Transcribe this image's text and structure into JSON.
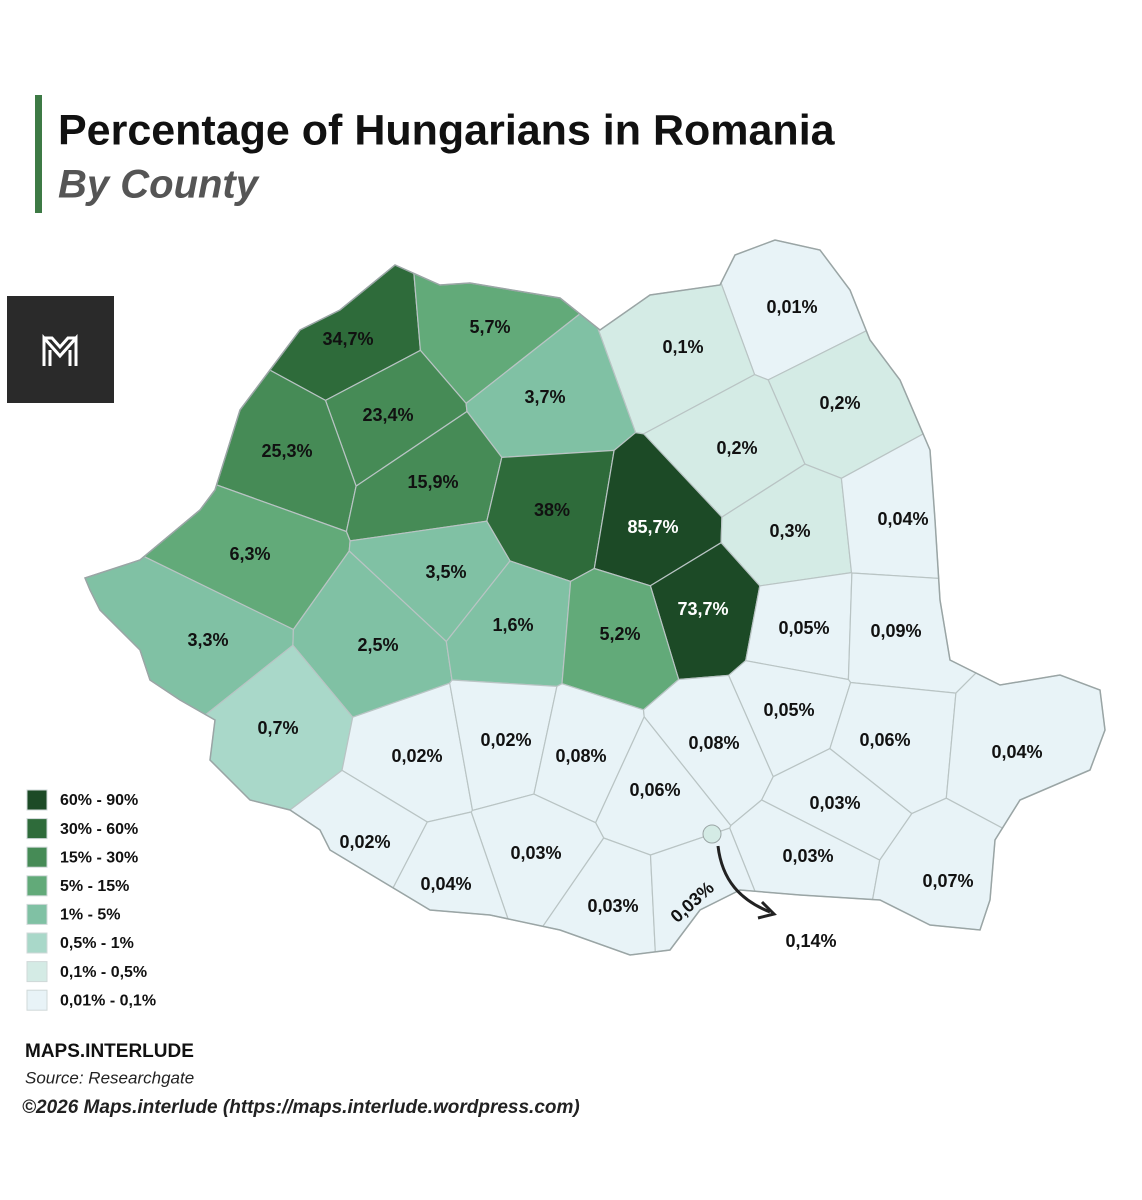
{
  "header": {
    "title": "Percentage of Hungarians in Romania",
    "subtitle": "By County"
  },
  "legend": [
    {
      "label": "60% - 90%",
      "color": "#1c4a26"
    },
    {
      "label": "30% - 60%",
      "color": "#2e6b3a"
    },
    {
      "label": "15% - 30%",
      "color": "#468b56"
    },
    {
      "label": "5% - 15%",
      "color": "#62aa79"
    },
    {
      "label": "1% - 5%",
      "color": "#80c1a4"
    },
    {
      "label": "0,5% - 1%",
      "color": "#a9d8c9"
    },
    {
      "label": "0,1% - 0,5%",
      "color": "#d4ebe5"
    },
    {
      "label": "0,01% - 0,1%",
      "color": "#e8f3f7"
    }
  ],
  "counties": [
    {
      "label": "34,7%",
      "color": "#2e6b3a"
    },
    {
      "label": "5,7%",
      "color": "#62aa79"
    },
    {
      "label": "0,01%",
      "color": "#e8f3f7"
    },
    {
      "label": "0,1%",
      "color": "#d4ebe5"
    },
    {
      "label": "23,4%",
      "color": "#468b56"
    },
    {
      "label": "3,7%",
      "color": "#80c1a4"
    },
    {
      "label": "0,2%",
      "color": "#d4ebe5"
    },
    {
      "label": "25,3%",
      "color": "#468b56"
    },
    {
      "label": "15,9%",
      "color": "#468b56"
    },
    {
      "label": "0,2%",
      "color": "#d4ebe5"
    },
    {
      "label": "38%",
      "color": "#2e6b3a"
    },
    {
      "label": "85,7%",
      "color": "#1c4a26"
    },
    {
      "label": "0,3%",
      "color": "#d4ebe5"
    },
    {
      "label": "0,04%",
      "color": "#e8f3f7"
    },
    {
      "label": "6,3%",
      "color": "#62aa79"
    },
    {
      "label": "3,5%",
      "color": "#80c1a4"
    },
    {
      "label": "73,7%",
      "color": "#1c4a26"
    },
    {
      "label": "0,05%",
      "color": "#e8f3f7"
    },
    {
      "label": "0,09%",
      "color": "#e8f3f7"
    },
    {
      "label": "3,3%",
      "color": "#80c1a4"
    },
    {
      "label": "2,5%",
      "color": "#80c1a4"
    },
    {
      "label": "1,6%",
      "color": "#80c1a4"
    },
    {
      "label": "5,2%",
      "color": "#62aa79"
    },
    {
      "label": "0,7%",
      "color": "#a9d8c9"
    },
    {
      "label": "0,05%",
      "color": "#e8f3f7"
    },
    {
      "label": "0,06%",
      "color": "#e8f3f7"
    },
    {
      "label": "0,04%",
      "color": "#e8f3f7"
    },
    {
      "label": "0,02%",
      "color": "#e8f3f7"
    },
    {
      "label": "0,02%",
      "color": "#e8f3f7"
    },
    {
      "label": "0,08%",
      "color": "#e8f3f7"
    },
    {
      "label": "0,08%",
      "color": "#e8f3f7"
    },
    {
      "label": "0,06%",
      "color": "#e8f3f7"
    },
    {
      "label": "0,03%",
      "color": "#e8f3f7"
    },
    {
      "label": "0,02%",
      "color": "#e8f3f7"
    },
    {
      "label": "0,03%",
      "color": "#e8f3f7"
    },
    {
      "label": "0,03%",
      "color": "#e8f3f7"
    },
    {
      "label": "0,04%",
      "color": "#e8f3f7"
    },
    {
      "label": "0,03%",
      "color": "#e8f3f7"
    },
    {
      "label": "0,03%",
      "color": "#e8f3f7"
    },
    {
      "label": "0,07%",
      "color": "#e8f3f7"
    }
  ],
  "capital": {
    "label": "0,14%",
    "color": "#d4ebe5"
  },
  "footer": {
    "brand": "MAPS.INTERLUDE",
    "source": "Source: Researchgate",
    "copyright": "©2026 Maps.interlude (https://maps.interlude.wordpress.com)"
  }
}
